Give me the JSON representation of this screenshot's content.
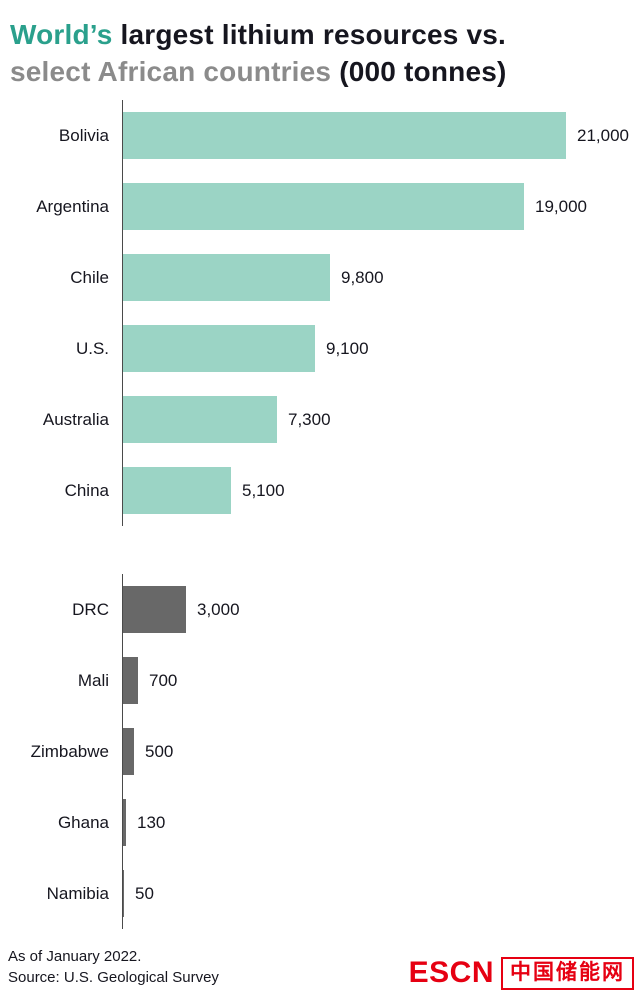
{
  "title": {
    "line1_highlight": "World’s",
    "line1_rest": " largest lithium resources vs.",
    "line2_gray": "select African countries",
    "line2_rest": " (000 tonnes)"
  },
  "chart_data": {
    "type": "bar",
    "orientation": "horizontal",
    "title": "World's largest lithium resources vs. select African countries (000 tonnes)",
    "unit": "000 tonnes",
    "xmax": 21000,
    "grid": false,
    "legend": "none",
    "groups": [
      {
        "name": "world",
        "bar_color": "#9bd4c5",
        "categories": [
          "Bolivia",
          "Argentina",
          "Chile",
          "U.S.",
          "Australia",
          "China"
        ],
        "values": [
          21000,
          19000,
          9800,
          9100,
          7300,
          5100
        ],
        "labels": [
          "21,000",
          "19,000",
          "9,800",
          "9,100",
          "7,300",
          "5,100"
        ]
      },
      {
        "name": "african-countries",
        "bar_color": "#686868",
        "categories": [
          "DRC",
          "Mali",
          "Zimbabwe",
          "Ghana",
          "Namibia"
        ],
        "values": [
          3000,
          700,
          500,
          130,
          50
        ],
        "labels": [
          "3,000",
          "700",
          "500",
          "130",
          "50"
        ]
      }
    ]
  },
  "footer": {
    "line1": "As of January 2022.",
    "line2": "Source: U.S. Geological Survey"
  },
  "logo": {
    "latin": "ESCN",
    "chinese": "中国储能网"
  },
  "colors": {
    "teal_bar": "#9bd4c5",
    "teal_text": "#2aa08c",
    "dark_text": "#16161f",
    "gray_text": "#8b8b8b",
    "gray_bar": "#686868",
    "axis_line": "#4a4a4a",
    "logo_red": "#e60012"
  }
}
